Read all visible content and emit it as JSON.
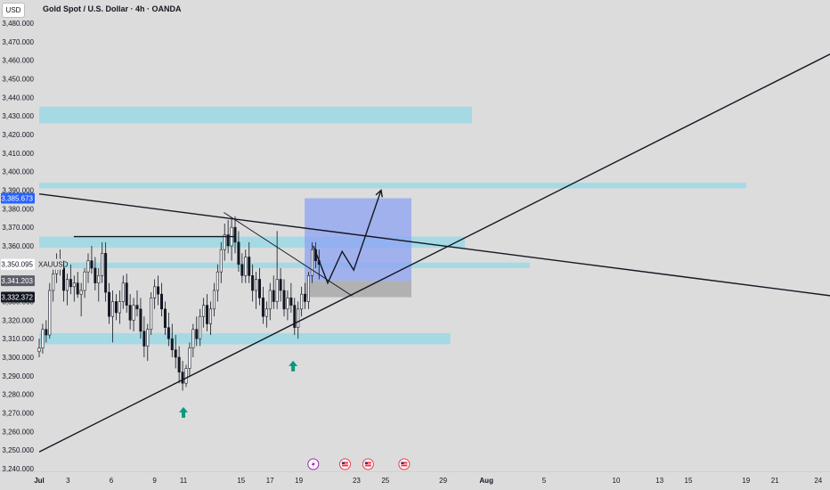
{
  "header": {
    "currency": "USD",
    "title": "Gold Spot / U.S. Dollar · 4h · OANDA"
  },
  "chart_data": {
    "type": "candlestick",
    "symbol": "XAUUSD",
    "y_axis": {
      "ylim": [
        3237,
        3490
      ],
      "ticks": [
        "3,480.000",
        "3,470.000",
        "3,460.000",
        "3,450.000",
        "3,440.000",
        "3,430.000",
        "3,420.000",
        "3,410.000",
        "3,400.000",
        "3,390.000",
        "3,380.000",
        "3,370.000",
        "3,360.000",
        "3,350.000",
        "3,340.000",
        "3,330.000",
        "3,320.000",
        "3,310.000",
        "3,300.000",
        "3,290.000",
        "3,280.000",
        "3,270.000",
        "3,260.000",
        "3,250.000",
        "3,240.000"
      ],
      "tick_values": [
        3480,
        3470,
        3460,
        3450,
        3440,
        3430,
        3420,
        3410,
        3400,
        3390,
        3380,
        3370,
        3360,
        3350,
        3340,
        3330,
        3320,
        3310,
        3300,
        3290,
        3280,
        3270,
        3260,
        3250,
        3240
      ]
    },
    "x_axis": {
      "labels": [
        "Jul",
        "3",
        "6",
        "9",
        "11",
        "15",
        "17",
        "19",
        "23",
        "25",
        "29",
        "Aug",
        "5",
        "10",
        "13",
        "15",
        "19",
        "21",
        "24"
      ],
      "label_day_index": [
        0,
        2,
        5,
        8,
        10,
        14,
        16,
        18,
        22,
        24,
        28,
        31,
        35,
        40,
        43,
        45,
        49,
        51,
        54
      ],
      "day_range": [
        0,
        55
      ]
    },
    "price_tags": [
      {
        "label": "3,385.673",
        "value": 3385.673,
        "color": "#2962ff"
      },
      {
        "label": "3,350.095",
        "value": 3350.095,
        "color": "#ffffff",
        "symbol": "XAUUSD"
      },
      {
        "label": "3,341.203",
        "value": 3341.203,
        "color": "#5d606b"
      },
      {
        "label": "3,332.372",
        "value": 3332.372,
        "color": "#131722"
      }
    ],
    "candles": [
      [
        3303,
        3310,
        3300,
        3305
      ],
      [
        3305,
        3318,
        3302,
        3315
      ],
      [
        3315,
        3320,
        3308,
        3312
      ],
      [
        3312,
        3340,
        3310,
        3336
      ],
      [
        3336,
        3348,
        3330,
        3345
      ],
      [
        3345,
        3356,
        3340,
        3352
      ],
      [
        3352,
        3358,
        3344,
        3348
      ],
      [
        3348,
        3352,
        3330,
        3336
      ],
      [
        3336,
        3345,
        3328,
        3342
      ],
      [
        3342,
        3350,
        3334,
        3338
      ],
      [
        3338,
        3344,
        3330,
        3340
      ],
      [
        3340,
        3346,
        3332,
        3334
      ],
      [
        3334,
        3340,
        3322,
        3336
      ],
      [
        3336,
        3348,
        3332,
        3346
      ],
      [
        3346,
        3356,
        3340,
        3352
      ],
      [
        3352,
        3360,
        3345,
        3348
      ],
      [
        3348,
        3354,
        3336,
        3340
      ],
      [
        3340,
        3348,
        3330,
        3344
      ],
      [
        3344,
        3362,
        3340,
        3356
      ],
      [
        3356,
        3362,
        3330,
        3335
      ],
      [
        3335,
        3340,
        3318,
        3322
      ],
      [
        3322,
        3336,
        3308,
        3330
      ],
      [
        3330,
        3334,
        3320,
        3324
      ],
      [
        3324,
        3336,
        3318,
        3330
      ],
      [
        3330,
        3344,
        3326,
        3340
      ],
      [
        3340,
        3345,
        3324,
        3328
      ],
      [
        3328,
        3334,
        3315,
        3320
      ],
      [
        3320,
        3332,
        3314,
        3328
      ],
      [
        3328,
        3336,
        3322,
        3326
      ],
      [
        3326,
        3332,
        3310,
        3314
      ],
      [
        3314,
        3322,
        3300,
        3306
      ],
      [
        3306,
        3318,
        3298,
        3315
      ],
      [
        3315,
        3335,
        3312,
        3332
      ],
      [
        3332,
        3342,
        3326,
        3338
      ],
      [
        3338,
        3344,
        3328,
        3334
      ],
      [
        3334,
        3340,
        3322,
        3326
      ],
      [
        3326,
        3330,
        3312,
        3316
      ],
      [
        3316,
        3324,
        3306,
        3310
      ],
      [
        3310,
        3318,
        3300,
        3304
      ],
      [
        3304,
        3312,
        3294,
        3300
      ],
      [
        3300,
        3306,
        3286,
        3292
      ],
      [
        3292,
        3298,
        3282,
        3286
      ],
      [
        3286,
        3296,
        3284,
        3294
      ],
      [
        3294,
        3308,
        3290,
        3305
      ],
      [
        3305,
        3318,
        3300,
        3315
      ],
      [
        3315,
        3322,
        3306,
        3310
      ],
      [
        3310,
        3326,
        3306,
        3322
      ],
      [
        3322,
        3332,
        3316,
        3328
      ],
      [
        3328,
        3334,
        3314,
        3318
      ],
      [
        3318,
        3330,
        3312,
        3326
      ],
      [
        3326,
        3340,
        3322,
        3336
      ],
      [
        3336,
        3350,
        3330,
        3346
      ],
      [
        3346,
        3362,
        3340,
        3358
      ],
      [
        3358,
        3372,
        3352,
        3366
      ],
      [
        3366,
        3374,
        3356,
        3360
      ],
      [
        3360,
        3375,
        3352,
        3370
      ],
      [
        3370,
        3376,
        3356,
        3362
      ],
      [
        3362,
        3368,
        3346,
        3350
      ],
      [
        3350,
        3356,
        3340,
        3344
      ],
      [
        3344,
        3358,
        3340,
        3354
      ],
      [
        3354,
        3362,
        3340,
        3344
      ],
      [
        3344,
        3350,
        3330,
        3336
      ],
      [
        3336,
        3346,
        3326,
        3342
      ],
      [
        3342,
        3348,
        3328,
        3332
      ],
      [
        3332,
        3338,
        3318,
        3322
      ],
      [
        3322,
        3330,
        3316,
        3326
      ],
      [
        3326,
        3340,
        3320,
        3336
      ],
      [
        3336,
        3344,
        3326,
        3330
      ],
      [
        3330,
        3368,
        3326,
        3342
      ],
      [
        3342,
        3348,
        3330,
        3336
      ],
      [
        3336,
        3342,
        3322,
        3326
      ],
      [
        3326,
        3336,
        3320,
        3332
      ],
      [
        3332,
        3340,
        3324,
        3328
      ],
      [
        3328,
        3332,
        3312,
        3316
      ],
      [
        3316,
        3330,
        3310,
        3326
      ],
      [
        3326,
        3338,
        3322,
        3334
      ],
      [
        3334,
        3340,
        3326,
        3330
      ],
      [
        3330,
        3346,
        3326,
        3344
      ],
      [
        3344,
        3362,
        3340,
        3358
      ],
      [
        3358,
        3362,
        3348,
        3352
      ],
      [
        3352,
        3358,
        3342,
        3350
      ]
    ],
    "zones": [
      {
        "from_day": 0,
        "to_day": 30,
        "low": 3426,
        "high": 3435
      },
      {
        "from_day": 0,
        "to_day": 49,
        "low": 3391,
        "high": 3394
      },
      {
        "from_day": 0,
        "to_day": 29.5,
        "low": 3359,
        "high": 3365
      },
      {
        "from_day": 0,
        "to_day": 34,
        "low": 3348,
        "high": 3351
      },
      {
        "from_day": 0,
        "to_day": 28.5,
        "low": 3307,
        "high": 3313
      }
    ],
    "position": {
      "from_day": 18.4,
      "to_day": 25.8,
      "entry": 3341.2,
      "target": 3385.673,
      "stop": 3332.372
    },
    "lines": [
      {
        "name": "descending-trendline",
        "from": [
          0,
          3388
        ],
        "to": [
          55,
          3333
        ]
      },
      {
        "name": "ascending-trendline",
        "from": [
          0,
          3249
        ],
        "to": [
          55,
          3464
        ]
      },
      {
        "name": "short-down-trendline",
        "from": [
          12.8,
          3378
        ],
        "to": [
          21.7,
          3333
        ]
      },
      {
        "name": "horizontal-resistance",
        "from": [
          2.4,
          3365
        ],
        "to": [
          13.6,
          3365
        ]
      }
    ],
    "projection": [
      [
        19.0,
        3360
      ],
      [
        20.0,
        3340
      ],
      [
        21.0,
        3357
      ],
      [
        21.8,
        3347
      ],
      [
        23.7,
        3390
      ]
    ],
    "arrows_up": [
      [
        10.0,
        3277
      ],
      [
        17.6,
        3302
      ]
    ],
    "event_icons": [
      {
        "type": "lightning",
        "day": 19.0
      },
      {
        "type": "us-flag",
        "day": 21.2
      },
      {
        "type": "us-flag",
        "day": 22.8
      },
      {
        "type": "us-flag",
        "day": 25.3
      }
    ],
    "colors": {
      "up": "#2962ff",
      "down": "#131722",
      "zone": "#9fd9e6",
      "position_profit": "#8da3f3",
      "position_loss": "#a9a9a9",
      "arrow": "#089981",
      "event_lightning": "#9c27b0",
      "event_flag": "#f23645"
    },
    "grid": false
  }
}
